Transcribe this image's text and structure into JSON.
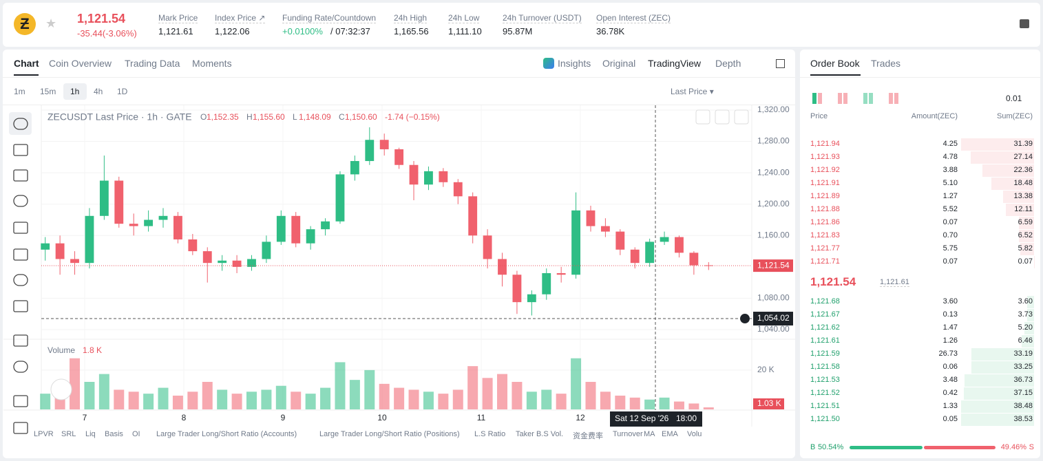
{
  "header": {
    "price": "1,121.54",
    "change": "-35.44(-3.06%)",
    "stats": [
      {
        "label": "Mark Price",
        "value": "1,121.61"
      },
      {
        "label": "Index Price ↗",
        "value": "1,122.06"
      },
      {
        "label": "Funding Rate/Countdown",
        "value": "+0.0100%",
        "extra": "/ 07:32:37"
      },
      {
        "label": "24h High",
        "value": "1,165.56"
      },
      {
        "label": "24h Low",
        "value": "1,111.10"
      },
      {
        "label": "24h Turnover (USDT)",
        "value": "95.87M"
      },
      {
        "label": "Open Interest (ZEC)",
        "value": "36.78K"
      }
    ]
  },
  "tabs": [
    "Chart",
    "Coin Overview",
    "Trading Data",
    "Moments"
  ],
  "view_tabs": [
    "Insights",
    "Original",
    "TradingView",
    "Depth"
  ],
  "intervals": [
    "1m",
    "15m",
    "1h",
    "4h",
    "1D"
  ],
  "price_type": "Last Price",
  "legend": {
    "title": "ZECUSDT Last Price · 1h · GATE",
    "ohlc": [
      {
        "k": "O",
        "v": "1,152.35"
      },
      {
        "k": "H",
        "v": "1,155.60"
      },
      {
        "k": "L",
        "v": "1,148.09"
      },
      {
        "k": "C",
        "v": "1,150.60"
      }
    ],
    "change": "-1.74 (−0.15%)",
    "volume": "Volume",
    "volume_value": "1.8 K"
  },
  "chart_data": {
    "type": "candlestick",
    "categories": [
      "7",
      "8",
      "9",
      "10",
      "11",
      "12"
    ],
    "open": [
      1142,
      1150,
      1130,
      1125,
      1185,
      1230,
      1175,
      1172,
      1180,
      1185,
      1155,
      1140,
      1125,
      1128,
      1120,
      1130,
      1152,
      1185,
      1150,
      1168,
      1178,
      1238,
      1255,
      1282,
      1270,
      1250,
      1225,
      1242,
      1228,
      1210,
      1160,
      1130,
      1110,
      1075,
      1085,
      1112,
      1110,
      1192,
      1172,
      1165,
      1142,
      1125,
      1152,
      1158,
      1138,
      1122
    ],
    "high": [
      1158,
      1160,
      1140,
      1195,
      1262,
      1235,
      1188,
      1192,
      1195,
      1190,
      1162,
      1145,
      1135,
      1135,
      1135,
      1160,
      1192,
      1190,
      1172,
      1182,
      1242,
      1262,
      1298,
      1290,
      1272,
      1255,
      1248,
      1246,
      1232,
      1215,
      1168,
      1138,
      1115,
      1090,
      1118,
      1120,
      1215,
      1198,
      1182,
      1168,
      1145,
      1156,
      1165,
      1160,
      1140,
      1126
    ],
    "low": [
      1128,
      1110,
      1110,
      1118,
      1180,
      1170,
      1160,
      1165,
      1170,
      1150,
      1135,
      1100,
      1115,
      1112,
      1115,
      1125,
      1148,
      1145,
      1142,
      1160,
      1175,
      1230,
      1250,
      1262,
      1245,
      1205,
      1218,
      1222,
      1200,
      1150,
      1118,
      1095,
      1060,
      1058,
      1078,
      1100,
      1105,
      1165,
      1158,
      1135,
      1118,
      1120,
      1148,
      1132,
      1110,
      1116
    ],
    "close": [
      1150,
      1130,
      1125,
      1185,
      1230,
      1175,
      1172,
      1180,
      1185,
      1155,
      1140,
      1125,
      1128,
      1120,
      1130,
      1152,
      1185,
      1150,
      1168,
      1178,
      1238,
      1255,
      1282,
      1270,
      1250,
      1225,
      1242,
      1228,
      1210,
      1160,
      1130,
      1110,
      1075,
      1085,
      1112,
      1110,
      1192,
      1172,
      1165,
      1142,
      1125,
      1152,
      1158,
      1138,
      1122,
      1121.54
    ],
    "volume": [
      8,
      12,
      26,
      14,
      18,
      10,
      9,
      8,
      11,
      7,
      9,
      14,
      10,
      8,
      9,
      10,
      12,
      9,
      8,
      11,
      24,
      15,
      20,
      13,
      11,
      10,
      9,
      8,
      10,
      22,
      16,
      18,
      14,
      9,
      10,
      8,
      26,
      14,
      9,
      7,
      6,
      5,
      6,
      4,
      3,
      1.03
    ],
    "volume_label": "1.03 K",
    "up_color": "#2ebd85",
    "down_color": "#f0616d",
    "ylim": [
      1028.6,
      1327
    ],
    "yticks": [
      {
        "value": 1320,
        "label": "1,320.00"
      },
      {
        "value": 1280,
        "label": "1,280.00"
      },
      {
        "value": 1240,
        "label": "1,240.00"
      },
      {
        "value": 1200,
        "label": "1,200.00"
      },
      {
        "value": 1160,
        "label": "1,160.00"
      },
      {
        "value": 1080,
        "label": "1,080.00"
      },
      {
        "value": 1040,
        "label": "1,040.00"
      }
    ],
    "y2lim": [
      0,
      35
    ],
    "y2ticks": [
      {
        "value": 20,
        "label": "20 K"
      }
    ],
    "last_price": {
      "value": 1121.54,
      "label": "1,121.54"
    },
    "crosshair": {
      "value": 1054.02,
      "label": "1,054.02",
      "date": "Sat 12 Sep '26",
      "time": "18:00"
    }
  },
  "indicators": [
    "LPVR",
    "SRL",
    "Liq",
    "Basis",
    "OI",
    "Large Trader Long/Short Ratio (Accounts)",
    "Large Trader Long/Short Ratio (Positions)",
    "L.S Ratio",
    "Taker B.S Vol.",
    "资金费率",
    "Turnover",
    "MA",
    "EMA",
    "Volu"
  ],
  "order_book": {
    "tabs": [
      "Order Book",
      "Trades"
    ],
    "precision": "0.01",
    "headers": [
      "Price",
      "Amount(ZEC)",
      "Sum(ZEC)"
    ],
    "asks": [
      [
        "1,121.94",
        "4.25",
        "31.39"
      ],
      [
        "1,121.93",
        "4.78",
        "27.14"
      ],
      [
        "1,121.92",
        "3.88",
        "22.36"
      ],
      [
        "1,121.91",
        "5.10",
        "18.48"
      ],
      [
        "1,121.89",
        "1.27",
        "13.38"
      ],
      [
        "1,121.88",
        "5.52",
        "12.11"
      ],
      [
        "1,121.86",
        "0.07",
        "6.59"
      ],
      [
        "1,121.83",
        "0.70",
        "6.52"
      ],
      [
        "1,121.77",
        "5.75",
        "5.82"
      ],
      [
        "1,121.71",
        "0.07",
        "0.07"
      ]
    ],
    "last": "1,121.54",
    "mark": "1,121.61",
    "bids": [
      [
        "1,121.68",
        "3.60",
        "3.60"
      ],
      [
        "1,121.67",
        "0.13",
        "3.73"
      ],
      [
        "1,121.62",
        "1.47",
        "5.20"
      ],
      [
        "1,121.61",
        "1.26",
        "6.46"
      ],
      [
        "1,121.59",
        "26.73",
        "33.19"
      ],
      [
        "1,121.58",
        "0.06",
        "33.25"
      ],
      [
        "1,121.53",
        "3.48",
        "36.73"
      ],
      [
        "1,121.52",
        "0.42",
        "37.15"
      ],
      [
        "1,121.51",
        "1.33",
        "38.48"
      ],
      [
        "1,121.50",
        "0.05",
        "38.53"
      ]
    ],
    "buy": "B",
    "buy_ratio": "50.54%",
    "sell_ratio": "49.46%",
    "sell": "S"
  }
}
